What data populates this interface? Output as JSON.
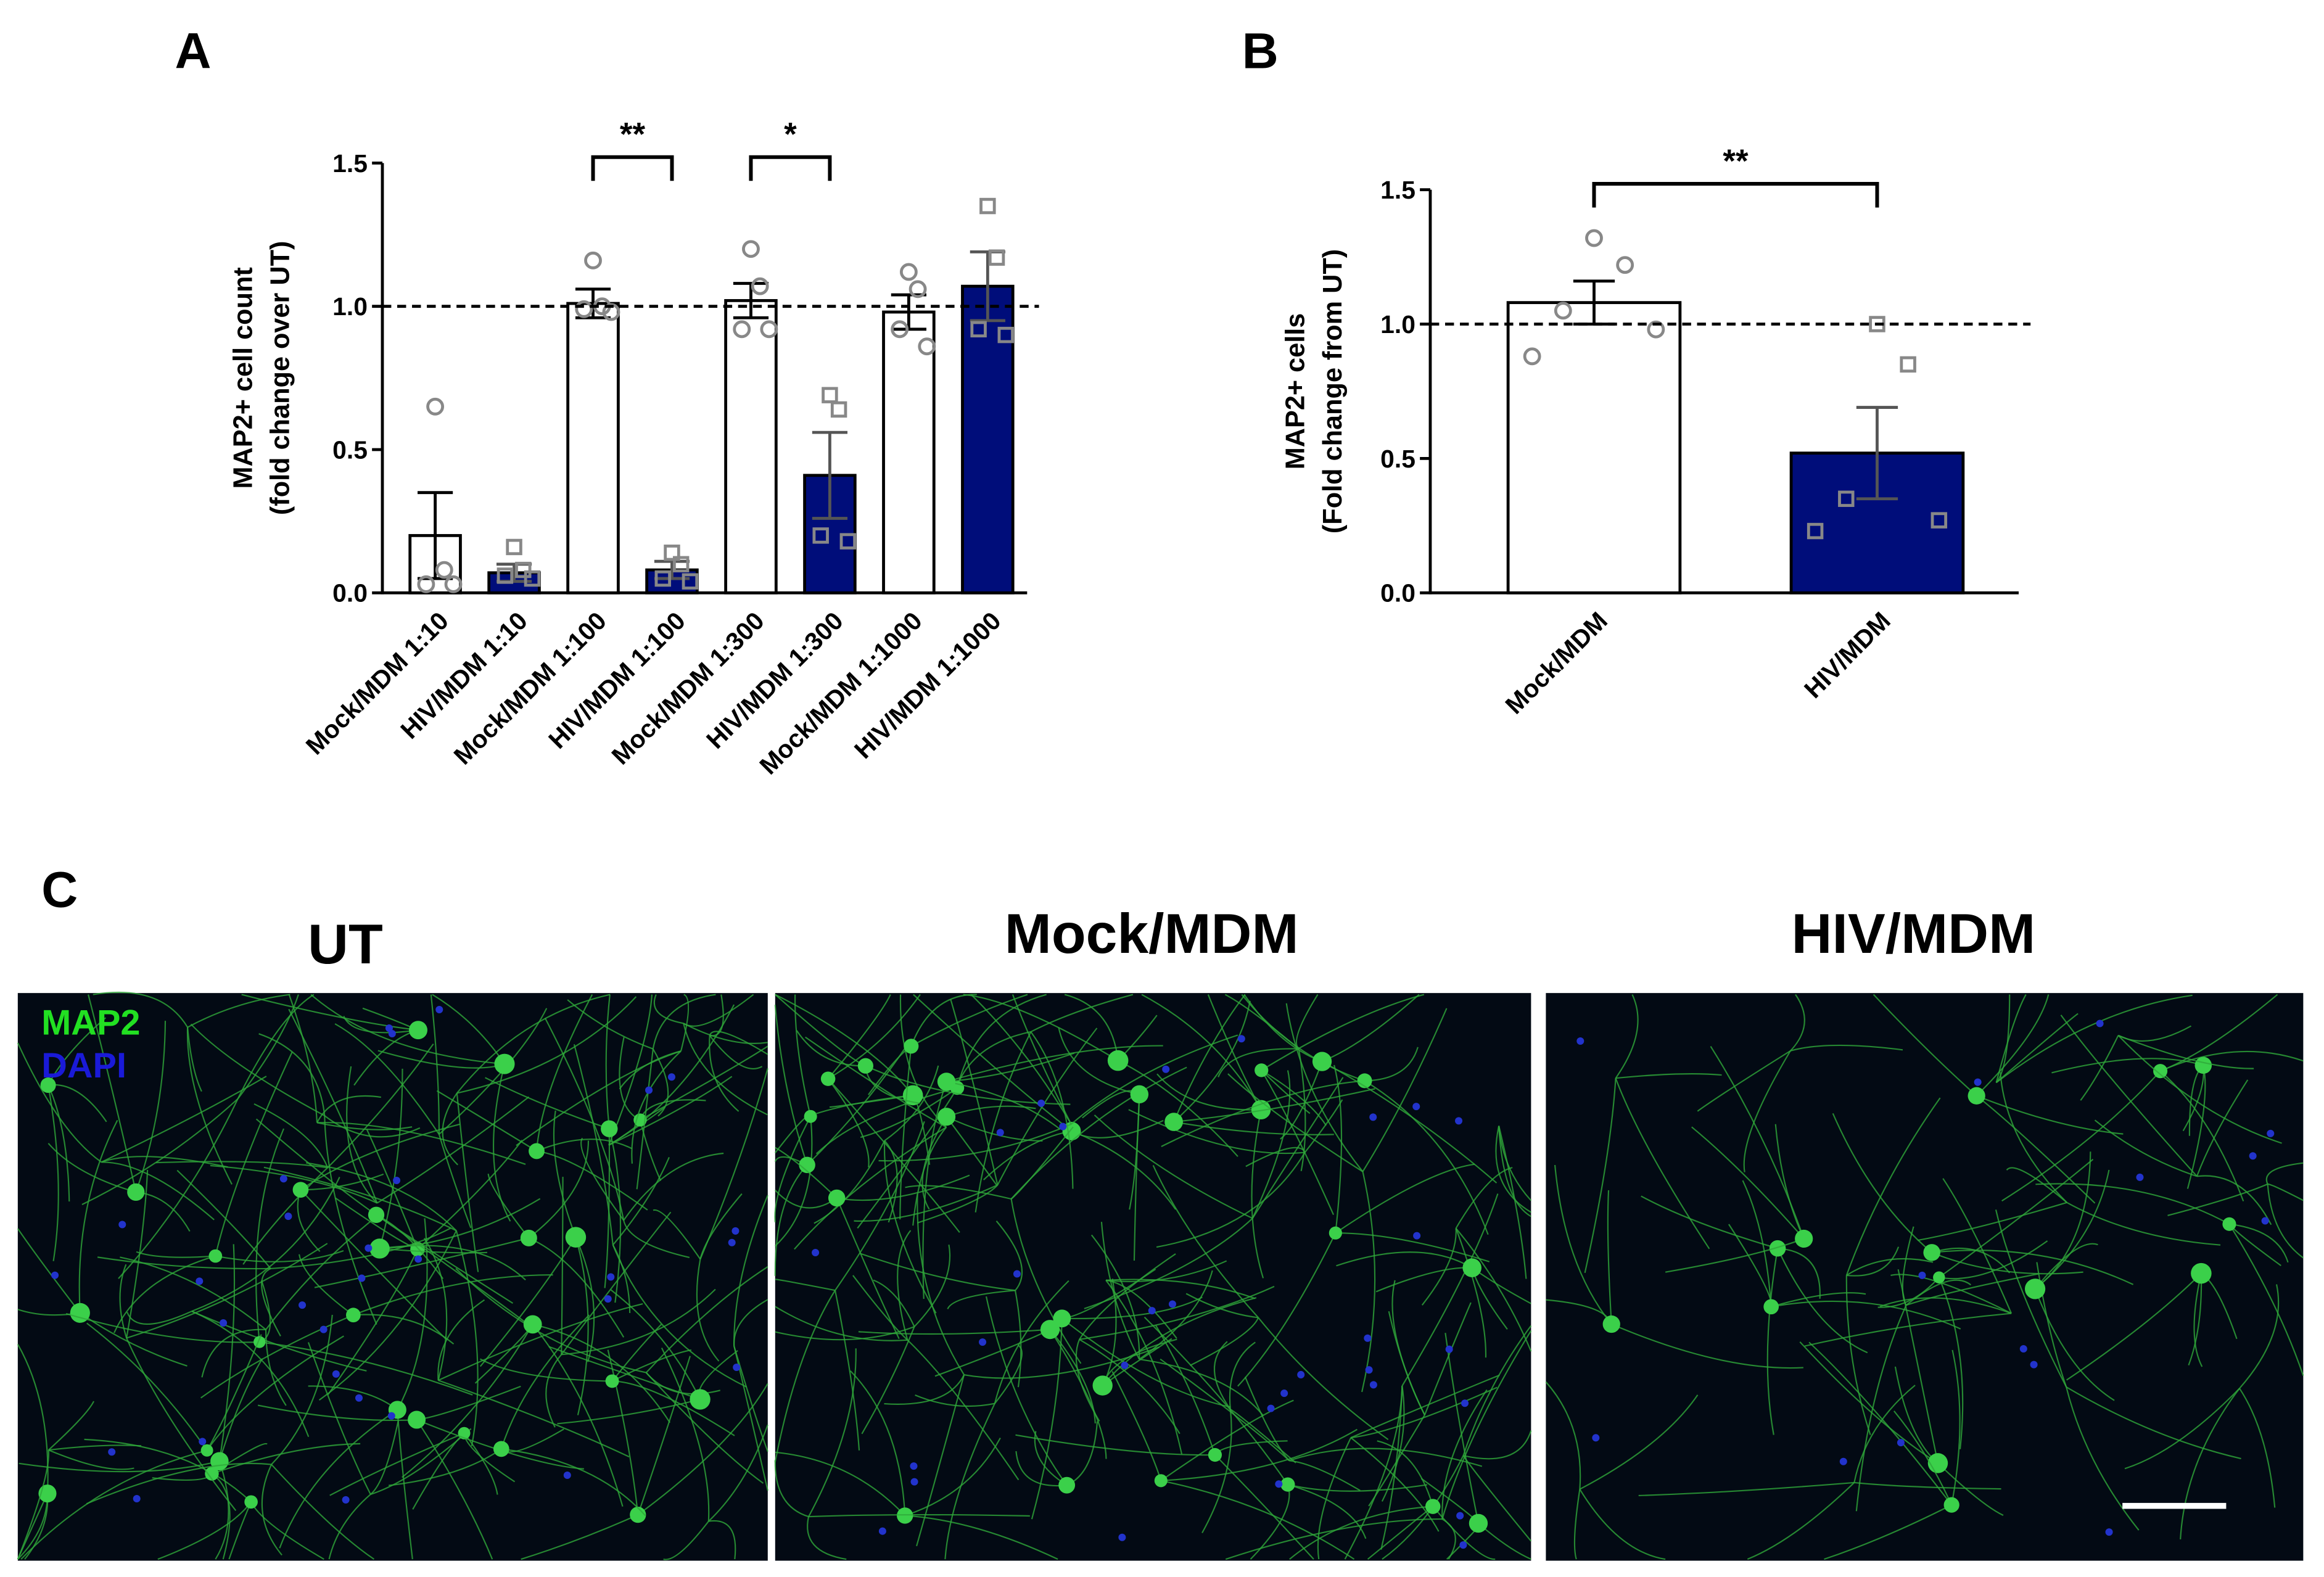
{
  "panel_labels": [
    "A",
    "B",
    "C"
  ],
  "chart_data": [
    {
      "type": "bar",
      "y_label": [
        "MAP2+ cell count",
        "(fold change over UT)"
      ],
      "categories": [
        "Mock/MDM 1:10",
        "HIV/MDM 1:10",
        "Mock/MDM 1:100",
        "HIV/MDM 1:100",
        "Mock/MDM 1:300",
        "HIV/MDM 1:300",
        "Mock/MDM 1:1000",
        "HIV/MDM 1:1000"
      ],
      "values": [
        0.2,
        0.07,
        1.01,
        0.08,
        1.02,
        0.41,
        0.98,
        1.07
      ],
      "errors": [
        0.15,
        0.03,
        0.05,
        0.03,
        0.06,
        0.15,
        0.06,
        0.12
      ],
      "points": [
        [
          0.65,
          0.08,
          0.03,
          0.03
        ],
        [
          0.16,
          0.08,
          0.06,
          0.05
        ],
        [
          1.16,
          1.0,
          0.99,
          0.98
        ],
        [
          0.14,
          0.1,
          0.05,
          0.04
        ],
        [
          1.2,
          1.07,
          0.92,
          0.92
        ],
        [
          0.69,
          0.64,
          0.2,
          0.18
        ],
        [
          1.12,
          1.06,
          0.92,
          0.86
        ],
        [
          1.35,
          1.17,
          0.92,
          0.9
        ]
      ],
      "colors": [
        "#ffffff",
        "#000d7a",
        "#ffffff",
        "#000d7a",
        "#ffffff",
        "#000d7a",
        "#ffffff",
        "#000d7a"
      ],
      "markers": [
        "circle",
        "square",
        "circle",
        "square",
        "circle",
        "square",
        "circle",
        "square"
      ],
      "reference_line": 1,
      "comparisons": [
        {
          "from": "Mock/MDM 1:100",
          "to": "HIV/MDM 1:100",
          "label": "**"
        },
        {
          "from": "Mock/MDM 1:300",
          "to": "HIV/MDM 1:300",
          "label": "*"
        }
      ],
      "ylim": [
        0,
        1.5
      ],
      "yticks": [
        {
          "value": 0,
          "label": "0.0"
        },
        {
          "value": 0.5,
          "label": "0.5"
        },
        {
          "value": 1,
          "label": "1.0"
        },
        {
          "value": 1.5,
          "label": "1.5"
        }
      ]
    },
    {
      "type": "bar",
      "y_label": [
        "MAP2+ cells",
        "(Fold change from UT)"
      ],
      "categories": [
        "Mock/MDM",
        "HIV/MDM"
      ],
      "values": [
        1.08,
        0.52
      ],
      "errors": [
        0.08,
        0.17
      ],
      "points": [
        [
          1.32,
          1.22,
          1.05,
          0.98,
          0.88
        ],
        [
          1.0,
          0.85,
          0.35,
          0.27,
          0.23
        ]
      ],
      "colors": [
        "#ffffff",
        "#000d7a"
      ],
      "markers": [
        "circle",
        "square"
      ],
      "reference_line": 1,
      "comparisons": [
        {
          "from": "Mock/MDM",
          "to": "HIV/MDM",
          "label": "**"
        }
      ],
      "ylim": [
        0,
        1.5
      ],
      "yticks": [
        {
          "value": 0,
          "label": "0.0"
        },
        {
          "value": 0.5,
          "label": "0.5"
        },
        {
          "value": 1,
          "label": "1.0"
        },
        {
          "value": 1.5,
          "label": "1.5"
        }
      ]
    }
  ],
  "images": {
    "titles": [
      "UT",
      "Mock/MDM",
      "HIV/MDM"
    ],
    "stain_legend": [
      "MAP2",
      "DAPI"
    ]
  }
}
